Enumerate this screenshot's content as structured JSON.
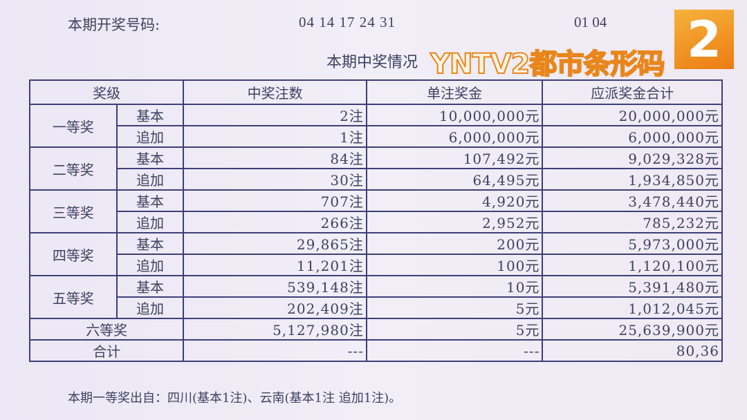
{
  "draw": {
    "label": "本期开奖号码:",
    "front": "04 14 17 24 31",
    "back": "01 04"
  },
  "title": "本期中奖情况",
  "headers": [
    "奖级",
    "中奖注数",
    "单注奖金",
    "应派奖金合计"
  ],
  "prizes": [
    {
      "name": "一等奖",
      "rows": [
        {
          "type": "基本",
          "count": "2注",
          "unit": "10,000,000元",
          "total": "20,000,000元"
        },
        {
          "type": "追加",
          "count": "1注",
          "unit": "6,000,000元",
          "total": "6,000,000元"
        }
      ]
    },
    {
      "name": "二等奖",
      "rows": [
        {
          "type": "基本",
          "count": "84注",
          "unit": "107,492元",
          "total": "9,029,328元"
        },
        {
          "type": "追加",
          "count": "30注",
          "unit": "64,495元",
          "total": "1,934,850元"
        }
      ]
    },
    {
      "name": "三等奖",
      "rows": [
        {
          "type": "基本",
          "count": "707注",
          "unit": "4,920元",
          "total": "3,478,440元"
        },
        {
          "type": "追加",
          "count": "266注",
          "unit": "2,952元",
          "total": "785,232元"
        }
      ]
    },
    {
      "name": "四等奖",
      "rows": [
        {
          "type": "基本",
          "count": "29,865注",
          "unit": "200元",
          "total": "5,973,000元"
        },
        {
          "type": "追加",
          "count": "11,201注",
          "unit": "100元",
          "total": "1,120,100元"
        }
      ]
    },
    {
      "name": "五等奖",
      "rows": [
        {
          "type": "基本",
          "count": "539,148注",
          "unit": "10元",
          "total": "5,391,480元"
        },
        {
          "type": "追加",
          "count": "202,409注",
          "unit": "5元",
          "total": "1,012,045元"
        }
      ]
    }
  ],
  "sixth": {
    "name": "六等奖",
    "count": "5,127,980注",
    "unit": "5元",
    "total": "25,639,900元"
  },
  "sum": {
    "name": "合计",
    "count": "---",
    "unit": "---",
    "total": "80,36"
  },
  "footer": "本期一等奖出自：四川(基本1注)、云南(基本1注 追加1注)。",
  "watermark": {
    "text": "YNTV2都市条形码",
    "logo": "2",
    "color": "#ec7c14"
  }
}
